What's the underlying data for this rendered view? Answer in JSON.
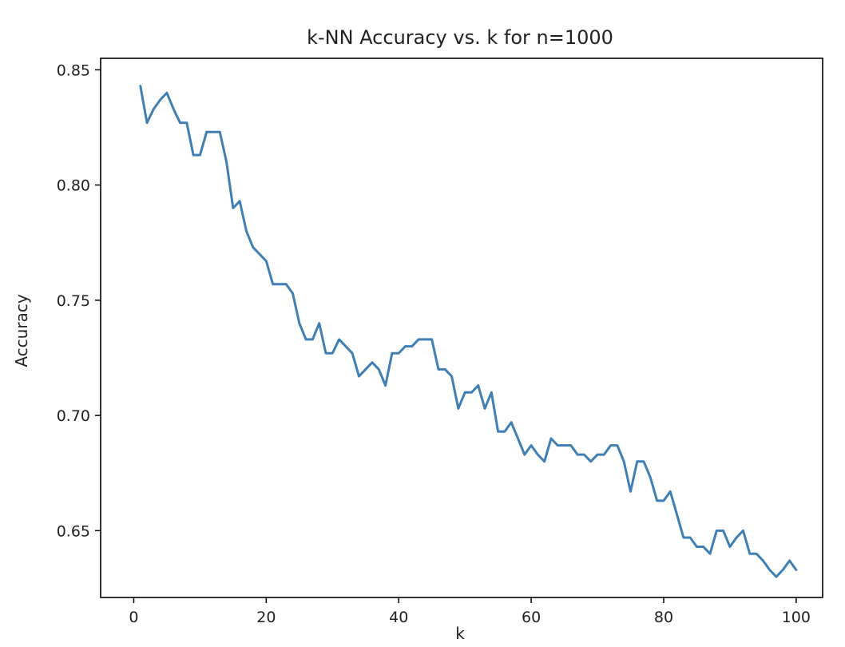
{
  "chart_data": {
    "type": "line",
    "title": "k-NN Accuracy vs. k for n=1000",
    "xlabel": "k",
    "ylabel": "Accuracy",
    "xlim": [
      -5,
      104
    ],
    "ylim": [
      0.621,
      0.855
    ],
    "x_ticks": [
      0,
      20,
      40,
      60,
      80,
      100
    ],
    "y_ticks": [
      0.65,
      0.7,
      0.75,
      0.8,
      0.85
    ],
    "x_tick_labels": [
      "0",
      "20",
      "40",
      "60",
      "80",
      "100"
    ],
    "y_tick_labels": [
      "0.65",
      "0.70",
      "0.75",
      "0.80",
      "0.85"
    ],
    "grid": false,
    "line_color": "#3f7fb3",
    "series": [
      {
        "name": "",
        "x": [
          1,
          2,
          3,
          4,
          5,
          6,
          7,
          8,
          9,
          10,
          11,
          12,
          13,
          14,
          15,
          16,
          17,
          18,
          19,
          20,
          21,
          22,
          23,
          24,
          25,
          26,
          27,
          28,
          29,
          30,
          31,
          32,
          33,
          34,
          35,
          36,
          37,
          38,
          39,
          40,
          41,
          42,
          43,
          44,
          45,
          46,
          47,
          48,
          49,
          50,
          51,
          52,
          53,
          54,
          55,
          56,
          57,
          58,
          59,
          60,
          61,
          62,
          63,
          64,
          65,
          66,
          67,
          68,
          69,
          70,
          71,
          72,
          73,
          74,
          75,
          76,
          77,
          78,
          79,
          80,
          81,
          82,
          83,
          84,
          85,
          86,
          87,
          88,
          89,
          90,
          91,
          92,
          93,
          94,
          95,
          96,
          97,
          98,
          99,
          100
        ],
        "y": [
          0.843,
          0.827,
          0.833,
          0.837,
          0.84,
          0.833,
          0.827,
          0.827,
          0.813,
          0.813,
          0.823,
          0.823,
          0.823,
          0.81,
          0.79,
          0.793,
          0.78,
          0.773,
          0.77,
          0.767,
          0.757,
          0.757,
          0.757,
          0.753,
          0.74,
          0.733,
          0.733,
          0.74,
          0.727,
          0.727,
          0.733,
          0.73,
          0.727,
          0.717,
          0.72,
          0.723,
          0.72,
          0.713,
          0.727,
          0.727,
          0.73,
          0.73,
          0.733,
          0.733,
          0.733,
          0.72,
          0.72,
          0.717,
          0.703,
          0.71,
          0.71,
          0.713,
          0.703,
          0.71,
          0.693,
          0.693,
          0.697,
          0.69,
          0.683,
          0.687,
          0.683,
          0.68,
          0.69,
          0.687,
          0.687,
          0.687,
          0.683,
          0.683,
          0.68,
          0.683,
          0.683,
          0.687,
          0.687,
          0.68,
          0.667,
          0.68,
          0.68,
          0.673,
          0.663,
          0.663,
          0.667,
          0.657,
          0.647,
          0.647,
          0.643,
          0.643,
          0.64,
          0.65,
          0.65,
          0.643,
          0.647,
          0.65,
          0.64,
          0.64,
          0.637,
          0.633,
          0.63,
          0.633,
          0.637,
          0.633
        ]
      }
    ]
  }
}
